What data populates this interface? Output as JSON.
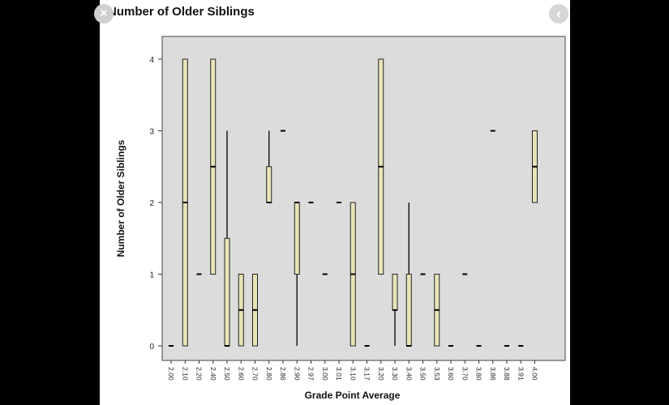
{
  "icons": {
    "close": "×",
    "next": "‹"
  },
  "chart_data": {
    "type": "boxplot",
    "title": "Number of Older Siblings",
    "xlabel": "Grade Point Average",
    "ylabel": "Number of Older Siblings",
    "ylim": [
      0,
      4
    ],
    "yticks": [
      0,
      1,
      2,
      3,
      4
    ],
    "grid": false,
    "plot_background": "#dcdcdc",
    "box_fill": "#e8e4b8",
    "categories": [
      "2.00",
      "2.10",
      "2.20",
      "2.40",
      "2.50",
      "2.60",
      "2.70",
      "2.80",
      "2.86",
      "2.90",
      "2.97",
      "3.00",
      "3.01",
      "3.10",
      "3.17",
      "3.20",
      "3.30",
      "3.40",
      "3.50",
      "3.53",
      "3.60",
      "3.70",
      "3.80",
      "3.86",
      "3.88",
      "3.91",
      "4.00"
    ],
    "boxes": [
      {
        "min": 0,
        "q1": 0,
        "median": 0,
        "q3": 0,
        "max": 0
      },
      {
        "min": 0,
        "q1": 0,
        "median": 2,
        "q3": 4,
        "max": 4
      },
      {
        "min": 1,
        "q1": 1,
        "median": 1,
        "q3": 1,
        "max": 1
      },
      {
        "min": 1,
        "q1": 1,
        "median": 2.5,
        "q3": 4,
        "max": 4
      },
      {
        "min": 0,
        "q1": 0,
        "median": 0,
        "q3": 1.5,
        "max": 3
      },
      {
        "min": 0,
        "q1": 0,
        "median": 0.5,
        "q3": 1,
        "max": 1
      },
      {
        "min": 0,
        "q1": 0,
        "median": 0.5,
        "q3": 1,
        "max": 1
      },
      {
        "min": 2,
        "q1": 2,
        "median": 2,
        "q3": 2.5,
        "max": 3
      },
      {
        "min": 3,
        "q1": 3,
        "median": 3,
        "q3": 3,
        "max": 3
      },
      {
        "min": 0,
        "q1": 1,
        "median": 2,
        "q3": 2,
        "max": 2
      },
      {
        "min": 2,
        "q1": 2,
        "median": 2,
        "q3": 2,
        "max": 2
      },
      {
        "min": 1,
        "q1": 1,
        "median": 1,
        "q3": 1,
        "max": 1
      },
      {
        "min": 2,
        "q1": 2,
        "median": 2,
        "q3": 2,
        "max": 2
      },
      {
        "min": 0,
        "q1": 0,
        "median": 1,
        "q3": 2,
        "max": 2
      },
      {
        "min": 0,
        "q1": 0,
        "median": 0,
        "q3": 0,
        "max": 0
      },
      {
        "min": 1,
        "q1": 1,
        "median": 2.5,
        "q3": 4,
        "max": 4
      },
      {
        "min": 0,
        "q1": 0.5,
        "median": 0.5,
        "q3": 1,
        "max": 1
      },
      {
        "min": 0,
        "q1": 0,
        "median": 0,
        "q3": 1,
        "max": 2
      },
      {
        "min": 1,
        "q1": 1,
        "median": 1,
        "q3": 1,
        "max": 1
      },
      {
        "min": 0,
        "q1": 0,
        "median": 0.5,
        "q3": 1,
        "max": 1
      },
      {
        "min": 0,
        "q1": 0,
        "median": 0,
        "q3": 0,
        "max": 0
      },
      {
        "min": 1,
        "q1": 1,
        "median": 1,
        "q3": 1,
        "max": 1
      },
      {
        "min": 0,
        "q1": 0,
        "median": 0,
        "q3": 0,
        "max": 0
      },
      {
        "min": 3,
        "q1": 3,
        "median": 3,
        "q3": 3,
        "max": 3
      },
      {
        "min": 0,
        "q1": 0,
        "median": 0,
        "q3": 0,
        "max": 0
      },
      {
        "min": 0,
        "q1": 0,
        "median": 0,
        "q3": 0,
        "max": 0
      },
      {
        "min": 2,
        "q1": 2,
        "median": 2.5,
        "q3": 3,
        "max": 3
      }
    ]
  }
}
